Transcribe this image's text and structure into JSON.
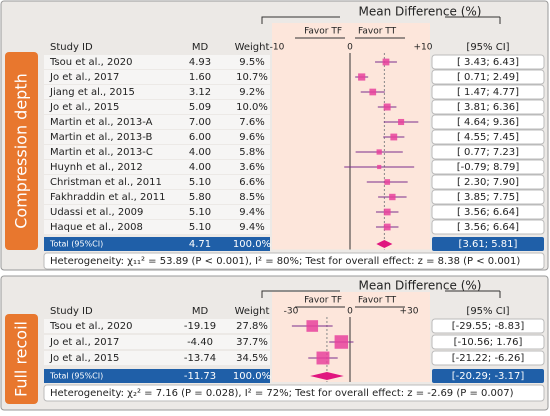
{
  "chart_data": [
    {
      "type": "forest",
      "title": "Mean Difference (%)",
      "group_label": "Compression depth",
      "columns": [
        "Study ID",
        "MD",
        "Weight",
        "[95% CI]"
      ],
      "favor_left": "Favor TF",
      "favor_right": "Favor TT",
      "xlim": [
        -10,
        10
      ],
      "xticks": [
        -10,
        0,
        {
          "value": 10,
          "label": "+10"
        }
      ],
      "categories": [
        "Tsou et al., 2020",
        "Jo et al., 2017",
        "Jiang et al., 2015",
        "Jo et al., 2015",
        "Martin et al., 2013-A",
        "Martin et al., 2013-B",
        "Martin et al., 2013-C",
        "Huynh et al., 2012",
        "Christman et al., 2011",
        "Fakhraddin et al., 2011",
        "Udassi et al., 2009",
        "Haque et al., 2008"
      ],
      "values": [
        4.93,
        1.6,
        3.12,
        5.09,
        7.0,
        6.0,
        4.0,
        4.0,
        5.1,
        5.8,
        5.1,
        5.1
      ],
      "value_labels": [
        "4.93",
        "1.60",
        "3.12",
        "5.09",
        "7.00",
        "6.00",
        "4.00",
        "4.00",
        "5.10",
        "5.80",
        "5.10",
        "5.10"
      ],
      "weights": [
        9.5,
        10.7,
        9.2,
        10.0,
        7.6,
        9.6,
        5.8,
        3.6,
        6.6,
        8.5,
        9.4,
        9.4
      ],
      "weight_labels": [
        "9.5%",
        "10.7%",
        "9.2%",
        "10.0%",
        "7.6%",
        "9.6%",
        "5.8%",
        "3.6%",
        "6.6%",
        "8.5%",
        "9.4%",
        "9.4%"
      ],
      "ci_low": [
        3.43,
        0.71,
        1.47,
        3.81,
        4.64,
        4.55,
        0.77,
        -0.79,
        2.3,
        3.85,
        3.56,
        3.56
      ],
      "ci_high": [
        6.43,
        2.49,
        4.77,
        6.36,
        9.36,
        7.45,
        7.23,
        8.79,
        7.9,
        7.75,
        6.64,
        6.64
      ],
      "ci_labels": [
        "[ 3.43; 6.43]",
        "[ 0.71; 2.49]",
        "[ 1.47; 4.77]",
        "[ 3.81; 6.36]",
        "[ 4.64; 9.36]",
        "[ 4.55; 7.45]",
        "[ 0.77; 7.23]",
        "[-0.79; 8.79]",
        "[ 2.30; 7.90]",
        "[ 3.85; 7.75]",
        "[ 3.56; 6.64]",
        "[ 3.56; 6.64]"
      ],
      "total": {
        "label": "Total (95%CI)",
        "value": 4.71,
        "weight": 100,
        "weight_label": "100.0%",
        "ci_low": 3.61,
        "ci_high": 5.81,
        "ci_label": "[3.61; 5.81]"
      },
      "heterogeneity": "Heterogeneity: χ₁₁² = 53.89 (P < 0.001), I² = 80%; Test for overall effect: z = 8.38 (P < 0.001)",
      "point_color": "#e8429c",
      "ci_color": "#7b2d8e",
      "diamond_color": "#e0157f"
    },
    {
      "type": "forest",
      "title": "Mean Difference (%)",
      "group_label": "Full recoil",
      "columns": [
        "Study ID",
        "MD",
        "Weight",
        "[95% CI]"
      ],
      "favor_left": "Favor TF",
      "favor_right": "Favor TT",
      "xlim": [
        -30,
        30
      ],
      "xticks": [
        -30,
        0,
        {
          "value": 30,
          "label": "+30"
        }
      ],
      "categories": [
        "Tsou et al., 2020",
        "Jo et al., 2017",
        "Jo et al., 2015"
      ],
      "values": [
        -19.19,
        -4.4,
        -13.74
      ],
      "value_labels": [
        "-19.19",
        "-4.40",
        "-13.74"
      ],
      "weights": [
        27.8,
        37.7,
        34.5
      ],
      "weight_labels": [
        "27.8%",
        "37.7%",
        "34.5%"
      ],
      "ci_low": [
        -29.55,
        -10.56,
        -21.22
      ],
      "ci_high": [
        -8.83,
        1.76,
        -6.26
      ],
      "ci_labels": [
        "[-29.55; -8.83]",
        "[-10.56; 1.76]",
        "[-21.22; -6.26]"
      ],
      "total": {
        "label": "Total (95%CI)",
        "value": -11.73,
        "weight": 100,
        "weight_label": "100.0%",
        "ci_low": -20.29,
        "ci_high": -3.17,
        "ci_label": "[-20.29; -3.17]"
      },
      "heterogeneity": "Heterogeneity: χ₂² = 7.16 (P = 0.028), I² = 72%; Test for overall effect: z = -2.69 (P = 0.007)",
      "point_color": "#e8429c",
      "ci_color": "#7b2d8e",
      "diamond_color": "#e0157f"
    }
  ]
}
